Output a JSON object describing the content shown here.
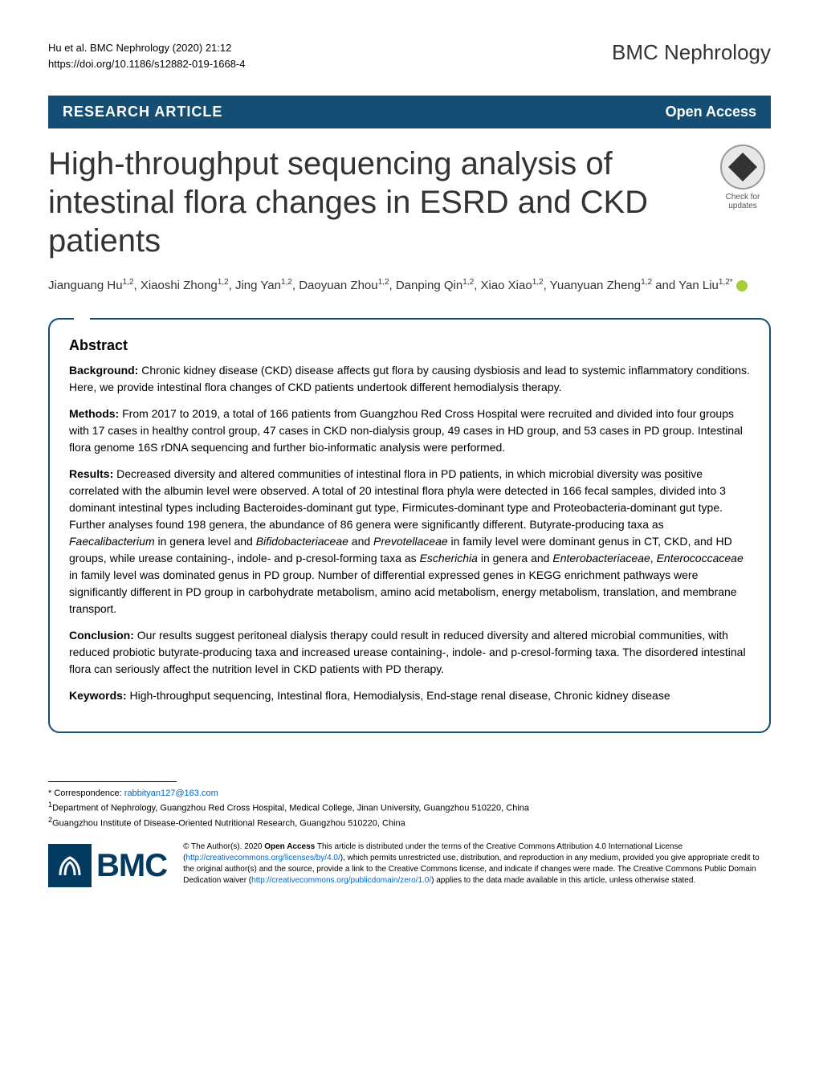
{
  "header": {
    "citation_line1": "Hu et al. BMC Nephrology      (2020) 21:12",
    "citation_line2": "https://doi.org/10.1186/s12882-019-1668-4",
    "journal": "BMC Nephrology"
  },
  "banner": {
    "left": "RESEARCH ARTICLE",
    "right": "Open Access"
  },
  "title": "High-throughput sequencing analysis of intestinal flora changes in ESRD and CKD patients",
  "check_updates": {
    "line1": "Check for",
    "line2": "updates"
  },
  "authors_html": "Jianguang Hu<sup>1,2</sup>, Xiaoshi Zhong<sup>1,2</sup>, Jing Yan<sup>1,2</sup>, Daoyuan Zhou<sup>1,2</sup>, Danping Qin<sup>1,2</sup>, Xiao Xiao<sup>1,2</sup>, Yuanyuan Zheng<sup>1,2</sup> and Yan Liu<sup>1,2*</sup>",
  "abstract": {
    "heading": "Abstract",
    "background_label": "Background:",
    "background": " Chronic kidney disease (CKD) disease affects gut flora by causing dysbiosis and lead to systemic inflammatory conditions. Here, we provide intestinal flora changes of CKD patients undertook different hemodialysis therapy.",
    "methods_label": "Methods:",
    "methods": " From 2017 to 2019, a total of 166 patients from Guangzhou Red Cross Hospital were recruited and divided into four groups with 17 cases in healthy control group, 47 cases in CKD non-dialysis group, 49 cases in HD group, and 53 cases in PD group. Intestinal flora genome 16S rDNA sequencing and further bio-informatic analysis were performed.",
    "results_label": "Results:",
    "results_p1": " Decreased diversity and altered communities of intestinal flora in PD patients, in which microbial diversity was positive correlated with the albumin level were observed. A total of 20 intestinal flora phyla were detected in 166 fecal samples, divided into 3 dominant intestinal types including Bacteroides-dominant gut type, Firmicutes-dominant type and Proteobacteria-dominant gut type. Further analyses found 198 genera, the abundance of 86 genera were significantly different. Butyrate-producing taxa as ",
    "results_i1": "Faecalibacterium",
    "results_p2": " in genera level and ",
    "results_i2": "Bifidobacteriaceae",
    "results_p3": " and ",
    "results_i3": "Prevotellaceae",
    "results_p4": " in family level were dominant genus in CT, CKD, and HD groups, while urease containing-, indole- and p-cresol-forming taxa as ",
    "results_i4": "Escherichia",
    "results_p5": " in genera and ",
    "results_i5": "Enterobacteriaceae",
    "results_p6": ", ",
    "results_i6": "Enterococcaceae",
    "results_p7": " in family level was dominated genus in PD group. Number of differential expressed genes in KEGG enrichment pathways were significantly different in PD group in carbohydrate metabolism, amino acid metabolism, energy metabolism, translation, and membrane transport.",
    "conclusion_label": "Conclusion:",
    "conclusion": " Our results suggest peritoneal dialysis therapy could result in reduced diversity and altered microbial communities, with reduced probiotic butyrate-producing taxa and increased urease containing-, indole- and p-cresol-forming taxa. The disordered intestinal flora can seriously affect the nutrition level in CKD patients with PD therapy.",
    "keywords_label": "Keywords:",
    "keywords": " High-throughput sequencing, Intestinal flora, Hemodialysis, End-stage renal disease, Chronic kidney disease"
  },
  "footer": {
    "correspondence_label": "* Correspondence: ",
    "correspondence_email": "rabbityan127@163.com",
    "affil1": "Department of Nephrology, Guangzhou Red Cross Hospital, Medical College, Jinan University, Guangzhou 510220, China",
    "affil1_sup": "1",
    "affil2": "Guangzhou Institute of Disease-Oriented Nutritional Research, Guangzhou 510220, China",
    "affil2_sup": "2",
    "bmc": "BMC",
    "license_p1": "© The Author(s). 2020 ",
    "license_bold": "Open Access",
    "license_p2": " This article is distributed under the terms of the Creative Commons Attribution 4.0 International License (",
    "license_url1": "http://creativecommons.org/licenses/by/4.0/",
    "license_p3": "), which permits unrestricted use, distribution, and reproduction in any medium, provided you give appropriate credit to the original author(s) and the source, provide a link to the Creative Commons license, and indicate if changes were made. The Creative Commons Public Domain Dedication waiver (",
    "license_url2": "http://creativecommons.org/publicdomain/zero/1.0/",
    "license_p4": ") applies to the data made available in this article, unless otherwise stated."
  },
  "colors": {
    "banner_bg": "#154e74",
    "banner_text": "#ffffff",
    "abstract_border": "#154e74",
    "bmc_blue": "#033a60",
    "link": "#0066cc",
    "orcid": "#a6ce39"
  },
  "typography": {
    "title_fontsize": 40,
    "journal_fontsize": 26,
    "banner_fontsize": 18,
    "body_fontsize": 14,
    "footer_fontsize": 11
  }
}
